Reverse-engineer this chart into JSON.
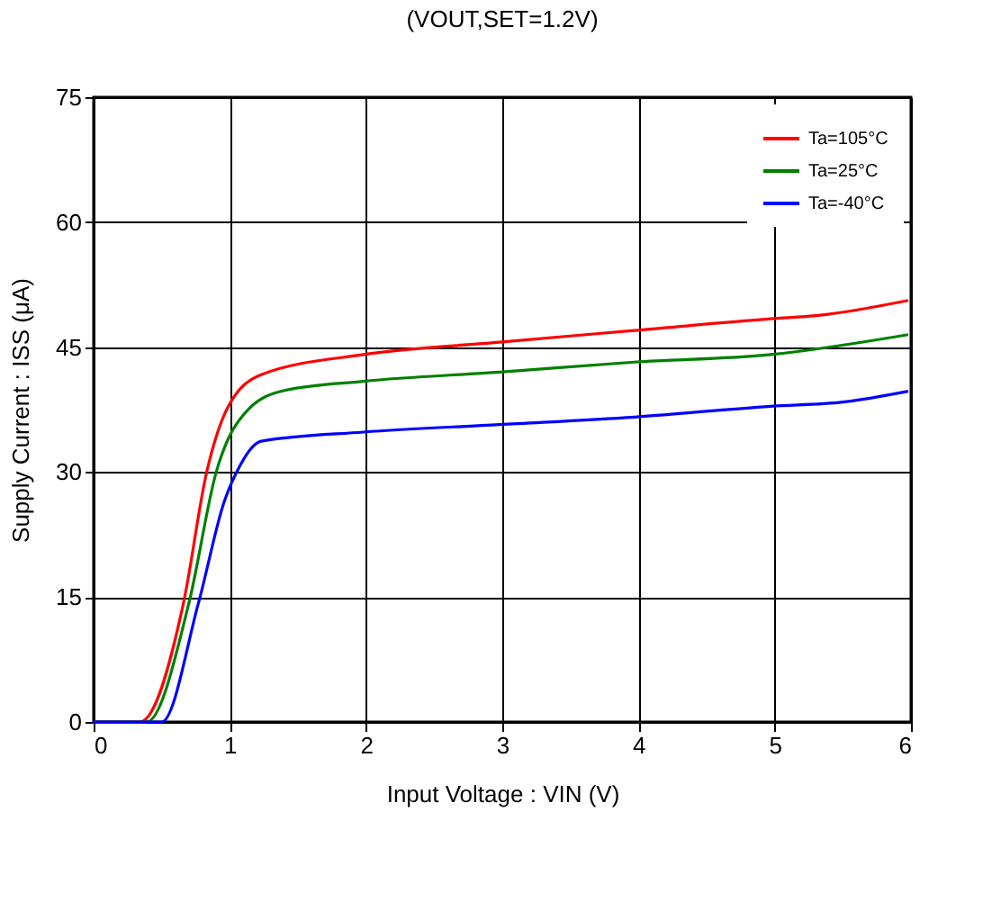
{
  "chart_data": {
    "type": "line",
    "title": "(VOUT,SET=1.2V)",
    "xlabel": "Input Voltage : VIN (V)",
    "ylabel": "Supply Current : ISS (μA)",
    "xlim": [
      0,
      6
    ],
    "xticks": [
      0,
      1,
      2,
      3,
      4,
      5,
      6
    ],
    "ylim": [
      0,
      75
    ],
    "yticks": [
      0,
      15,
      30,
      45,
      60,
      75
    ],
    "grid": true,
    "legend": "top right",
    "series": [
      {
        "name": "Ta=105°C",
        "color": "#ff0000",
        "x": [
          0,
          0.34,
          0.66,
          0.83,
          0.98,
          1.23,
          1.98,
          2.98,
          3.97,
          4.97,
          5.32,
          5.98
        ],
        "values": [
          0,
          0,
          14.3,
          30,
          37.6,
          41.7,
          44.1,
          45.6,
          47,
          48.4,
          48.8,
          50.6
        ]
      },
      {
        "name": "Ta=25°C",
        "color": "#008000",
        "x": [
          0,
          0.39,
          0.7,
          0.9,
          1.14,
          1.4,
          1.98,
          2.98,
          3.97,
          4.97,
          5.98
        ],
        "values": [
          0,
          0,
          14.3,
          30,
          37.6,
          39.8,
          40.9,
          42,
          43.2,
          44.1,
          46.5
        ]
      },
      {
        "name": "Ta=-40°C",
        "color": "#0000ff",
        "x": [
          0,
          0.5,
          0.77,
          0.96,
          1.05,
          1.23,
          1.98,
          2.98,
          3.97,
          4.97,
          5.5,
          5.98
        ],
        "values": [
          0,
          0,
          14.3,
          26.5,
          30,
          33.7,
          34.8,
          35.7,
          36.6,
          37.9,
          38.4,
          39.7
        ]
      }
    ]
  }
}
